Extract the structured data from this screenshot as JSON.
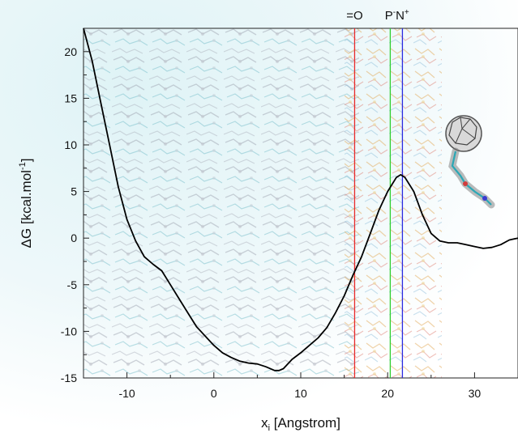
{
  "chart_data": {
    "type": "line",
    "title": "",
    "xlabel": "x",
    "xlabel_sub": "i",
    "xlabel_rest": " [Angstrom]",
    "ylabel": "ΔG [kcal.mol",
    "ylabel_sup": "-1",
    "ylabel_end": "]",
    "xlim": [
      -15,
      35
    ],
    "ylim": [
      -15,
      22.5
    ],
    "xticks": [
      -10,
      0,
      10,
      20,
      30
    ],
    "yticks": [
      -15,
      -10,
      -5,
      0,
      5,
      10,
      15,
      20
    ],
    "grid": false,
    "markers": [
      {
        "x": 16.2,
        "color": "#e8292a",
        "label": "=O",
        "label_sup": ""
      },
      {
        "x": 20.3,
        "color": "#2fce2f",
        "label": "P",
        "label_sup": "-"
      },
      {
        "x": 21.7,
        "color": "#2a2ae0",
        "label": "N",
        "label_sup": "+"
      }
    ],
    "series": [
      {
        "color": "#000000",
        "x": [
          -15,
          -14,
          -13,
          -12,
          -11,
          -10,
          -9,
          -8,
          -7,
          -6,
          -5,
          -4,
          -3,
          -2,
          -1,
          0,
          1,
          2,
          3,
          4,
          5,
          6,
          7,
          7.5,
          8,
          9,
          10,
          11,
          12,
          13,
          14,
          15,
          16,
          17,
          18,
          19,
          20,
          21,
          21.5,
          22,
          23,
          24,
          25,
          26,
          27,
          28,
          29,
          30,
          31,
          32,
          33,
          34,
          35
        ],
        "y": [
          22.5,
          19,
          14.5,
          10,
          5.5,
          2,
          -0.3,
          -2,
          -2.8,
          -3.5,
          -5,
          -6.5,
          -8,
          -9.5,
          -10.5,
          -11.5,
          -12.3,
          -12.8,
          -13.2,
          -13.4,
          -13.5,
          -13.8,
          -14.2,
          -14.2,
          -14,
          -13,
          -12.3,
          -11.5,
          -10.7,
          -9.6,
          -8,
          -6.2,
          -4,
          -2,
          0.5,
          3,
          5,
          6.5,
          6.8,
          6.5,
          5,
          2.5,
          0.5,
          -0.3,
          -0.5,
          -0.5,
          -0.7,
          -0.9,
          -1.1,
          -1,
          -0.7,
          -0.2,
          0
        ]
      }
    ]
  }
}
